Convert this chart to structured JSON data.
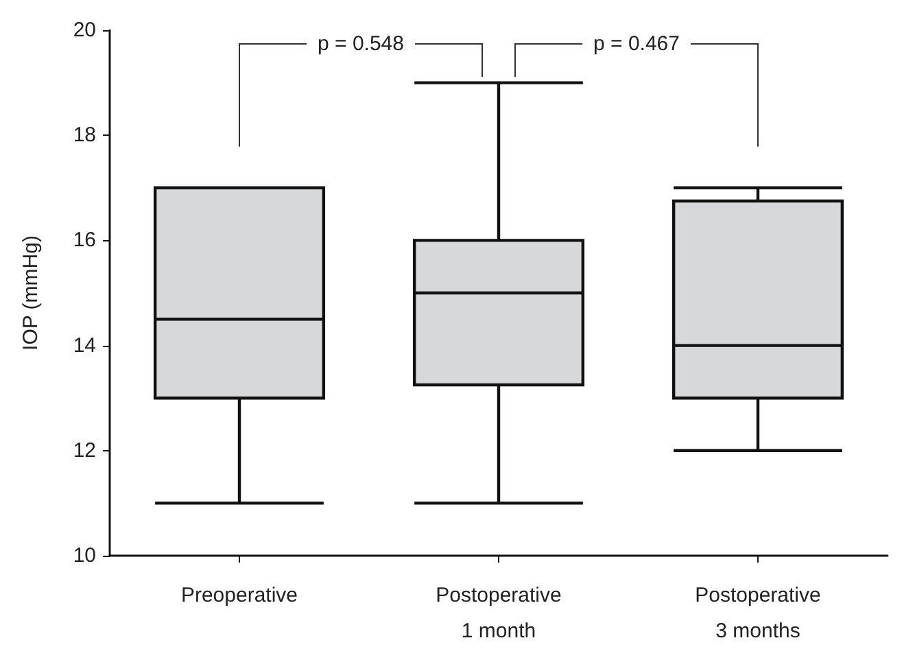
{
  "chart_data": {
    "type": "box",
    "ylabel": "IOP (mmHg)",
    "categories": [
      "Preoperative",
      "Postoperative\n1 month",
      "Postoperative\n3 months"
    ],
    "series": [
      {
        "color": "#d6d8da",
        "boxes": [
          {
            "low": 11,
            "q1": 13,
            "median": 14.5,
            "q3": 17,
            "high": 17
          },
          {
            "low": 11,
            "q1": 13.25,
            "median": 15,
            "q3": 16,
            "high": 19
          },
          {
            "low": 12,
            "q1": 13,
            "median": 14,
            "q3": 16.75,
            "high": 17
          }
        ]
      }
    ],
    "ylim": [
      10,
      20
    ],
    "yticks": [
      10,
      12,
      14,
      16,
      18,
      20
    ],
    "annotations": [
      "p = 0.548",
      "p = 0.467"
    ],
    "grid": false
  }
}
